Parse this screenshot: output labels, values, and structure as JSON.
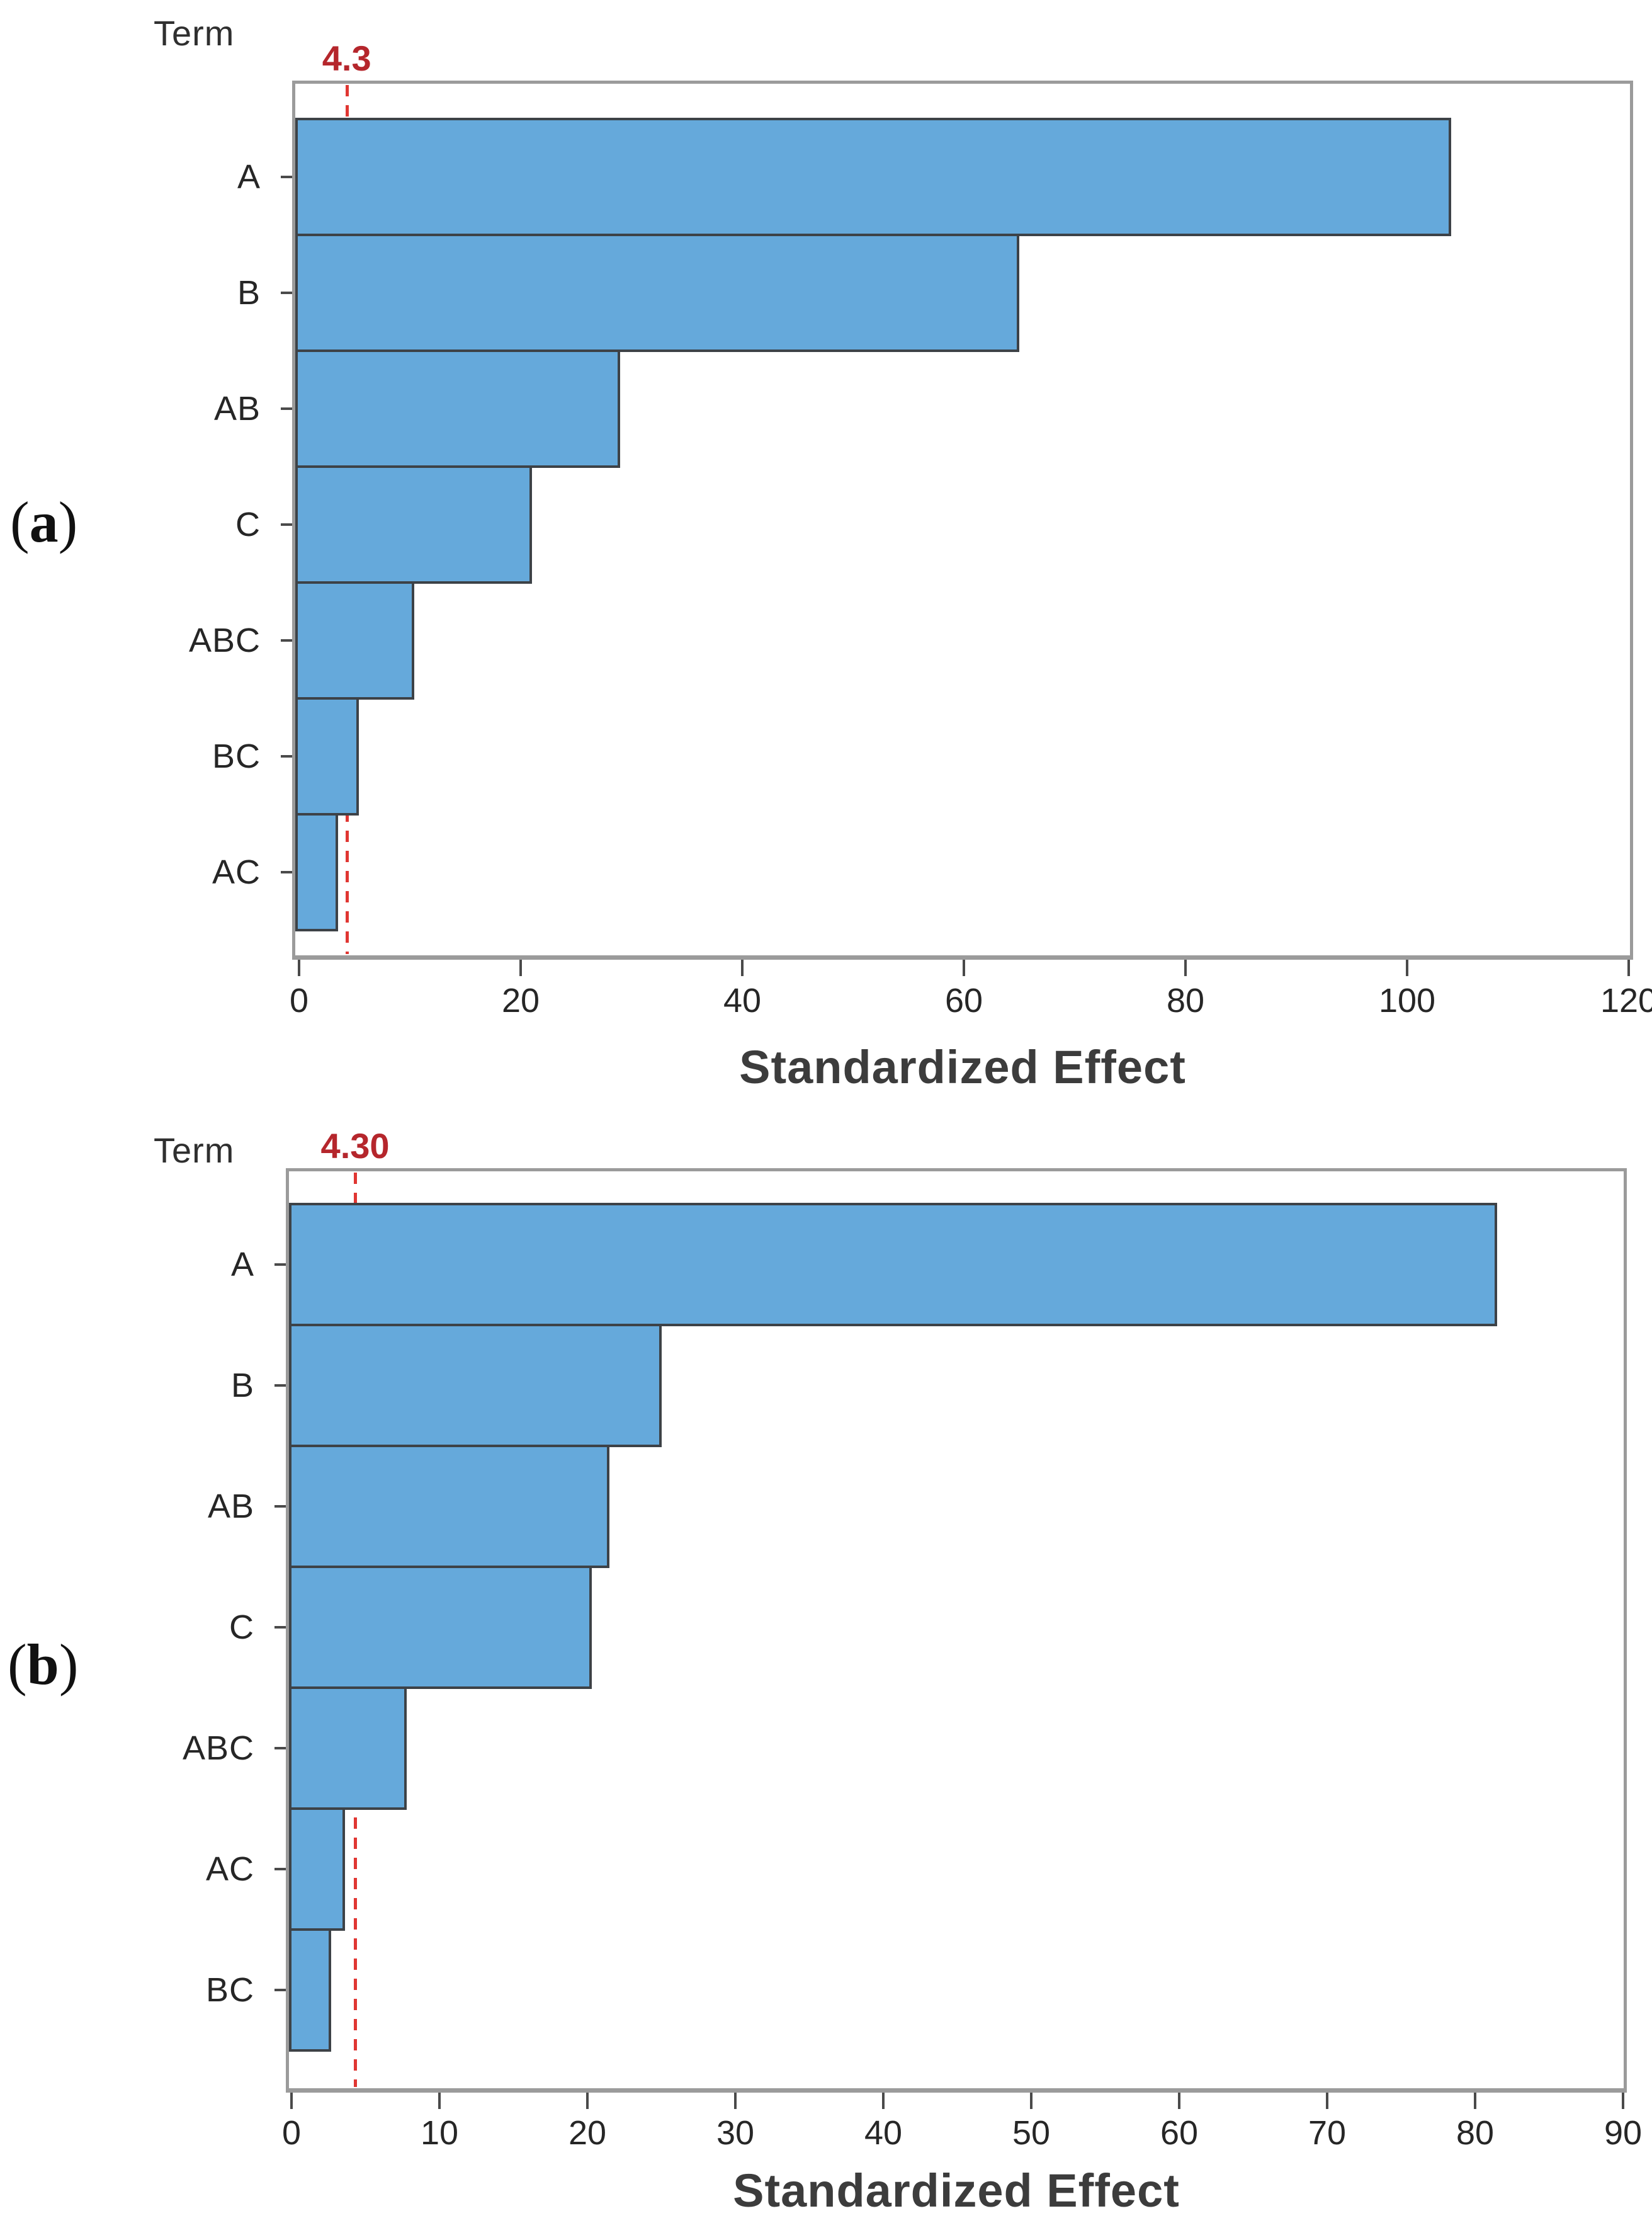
{
  "figure": {
    "background": "#ffffff",
    "description": "Two stacked Minitab-style Pareto charts of standardized effects"
  },
  "chart_data": [
    {
      "panel": "a",
      "type": "bar",
      "orientation": "horizontal",
      "figure_label": {
        "prefix": "(",
        "letter": "a",
        "suffix": ")"
      },
      "y_axis_title": "Term",
      "x_axis_title": "Standardized Effect",
      "categories": [
        "A",
        "B",
        "AB",
        "C",
        "ABC",
        "BC",
        "AC"
      ],
      "values": [
        104,
        65,
        29,
        21,
        10.4,
        5.4,
        3.5
      ],
      "x_ticks": [
        0,
        20,
        40,
        60,
        80,
        100,
        120
      ],
      "xlim": [
        0,
        120.7
      ],
      "grid": false,
      "legend": null,
      "reference_line": {
        "value": 4.3,
        "label": "4.3"
      },
      "colors": {
        "bar_fill": "#65a9db",
        "bar_border": "#3d4247",
        "frame": "#9b9b9b",
        "reference_line": "#e03632",
        "reference_label": "#b5262c",
        "text": "#262626"
      }
    },
    {
      "panel": "b",
      "type": "bar",
      "orientation": "horizontal",
      "figure_label": {
        "prefix": "(",
        "letter": "b",
        "suffix": ")"
      },
      "y_axis_title": "Term",
      "x_axis_title": "Standardized Effect",
      "categories": [
        "A",
        "B",
        "AB",
        "C",
        "ABC",
        "AC",
        "BC"
      ],
      "values": [
        81.5,
        25,
        21.5,
        20.3,
        7.8,
        3.6,
        2.7
      ],
      "x_ticks": [
        0,
        10,
        20,
        30,
        40,
        50,
        60,
        70,
        80,
        90
      ],
      "xlim": [
        0,
        90.5
      ],
      "grid": false,
      "legend": null,
      "reference_line": {
        "value": 4.3,
        "label": "4.30"
      },
      "colors": {
        "bar_fill": "#65a9db",
        "bar_border": "#3d4247",
        "frame": "#9b9b9b",
        "reference_line": "#e03632",
        "reference_label": "#b5262c",
        "text": "#262626"
      }
    }
  ]
}
